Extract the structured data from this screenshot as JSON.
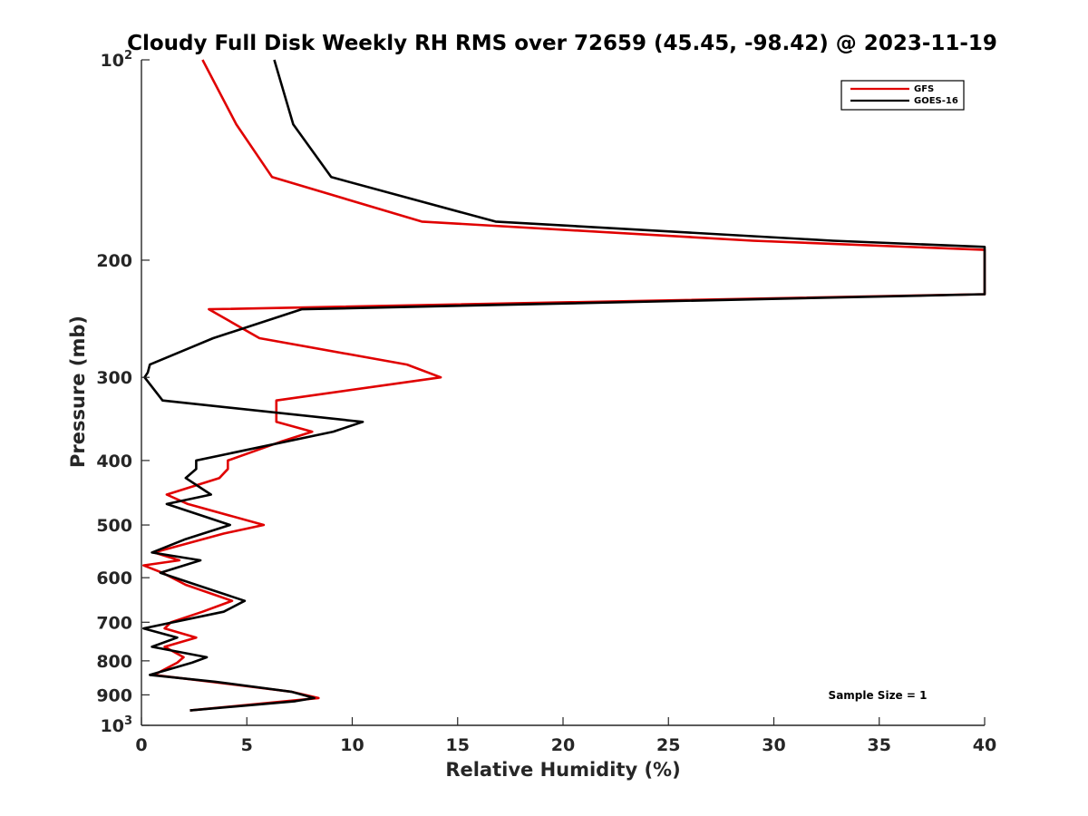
{
  "chart_data": {
    "type": "line",
    "title": "Cloudy Full Disk Weekly RH RMS over 72659 (45.45, -98.42) @ 2023-11-19",
    "xlabel": "Relative Humidity (%)",
    "ylabel": "Pressure (mb)",
    "xlim": [
      0,
      40
    ],
    "ylim": [
      100,
      1000
    ],
    "y_scale": "log",
    "y_reversed": true,
    "grid": false,
    "legend_position": "top-right",
    "x_ticks": [
      "0",
      "5",
      "10",
      "15",
      "20",
      "25",
      "30",
      "35",
      "40"
    ],
    "y_ticks": [
      {
        "value": 100,
        "base": "10",
        "exp": "2"
      },
      {
        "value": 200,
        "label": "200"
      },
      {
        "value": 300,
        "label": "300"
      },
      {
        "value": 400,
        "label": "400"
      },
      {
        "value": 500,
        "label": "500"
      },
      {
        "value": 600,
        "label": "600"
      },
      {
        "value": 700,
        "label": "700"
      },
      {
        "value": 800,
        "label": "800"
      },
      {
        "value": 900,
        "label": "900"
      },
      {
        "value": 1000,
        "base": "10",
        "exp": "3"
      }
    ],
    "annotation": "Sample Size = 1",
    "series": [
      {
        "name": "GFS",
        "color": "#e00000",
        "points": [
          [
            2.9,
            100
          ],
          [
            4.5,
            125
          ],
          [
            6.2,
            150
          ],
          [
            13.3,
            175
          ],
          [
            29.0,
            187
          ],
          [
            40.0,
            193
          ],
          [
            40.0,
            225
          ],
          [
            3.2,
            237
          ],
          [
            5.6,
            262
          ],
          [
            12.6,
            287
          ],
          [
            14.2,
            300
          ],
          [
            6.4,
            325
          ],
          [
            6.4,
            350
          ],
          [
            8.1,
            362
          ],
          [
            6.6,
            375
          ],
          [
            4.1,
            400
          ],
          [
            4.1,
            412
          ],
          [
            3.7,
            425
          ],
          [
            1.2,
            450
          ],
          [
            2.2,
            465
          ],
          [
            5.8,
            500
          ],
          [
            3.9,
            515
          ],
          [
            0.6,
            550
          ],
          [
            1.8,
            565
          ],
          [
            0.1,
            575
          ],
          [
            1.0,
            590
          ],
          [
            2.1,
            615
          ],
          [
            4.3,
            650
          ],
          [
            2.9,
            675
          ],
          [
            1.4,
            700
          ],
          [
            1.1,
            715
          ],
          [
            2.6,
            738
          ],
          [
            1.1,
            762
          ],
          [
            2.0,
            790
          ],
          [
            1.7,
            805
          ],
          [
            0.6,
            840
          ],
          [
            3.3,
            860
          ],
          [
            7.1,
            890
          ],
          [
            8.4,
            910
          ],
          [
            2.3,
            950
          ]
        ]
      },
      {
        "name": "GOES-16",
        "color": "#000000",
        "points": [
          [
            6.3,
            100
          ],
          [
            7.2,
            125
          ],
          [
            9.0,
            150
          ],
          [
            16.8,
            175
          ],
          [
            32.8,
            187
          ],
          [
            40.0,
            191
          ],
          [
            40.0,
            225
          ],
          [
            7.6,
            237
          ],
          [
            3.4,
            262
          ],
          [
            0.4,
            287
          ],
          [
            0.3,
            295
          ],
          [
            0.15,
            300
          ],
          [
            1.0,
            325
          ],
          [
            10.5,
            350
          ],
          [
            9.1,
            362
          ],
          [
            2.6,
            400
          ],
          [
            2.6,
            412
          ],
          [
            2.1,
            425
          ],
          [
            3.3,
            450
          ],
          [
            1.2,
            465
          ],
          [
            4.2,
            500
          ],
          [
            2.1,
            525
          ],
          [
            0.5,
            550
          ],
          [
            2.8,
            565
          ],
          [
            0.9,
            590
          ],
          [
            2.6,
            615
          ],
          [
            4.9,
            650
          ],
          [
            3.9,
            675
          ],
          [
            0.1,
            715
          ],
          [
            1.7,
            738
          ],
          [
            0.5,
            762
          ],
          [
            3.1,
            790
          ],
          [
            2.4,
            805
          ],
          [
            0.4,
            840
          ],
          [
            3.5,
            860
          ],
          [
            7.1,
            890
          ],
          [
            8.2,
            910
          ],
          [
            7.3,
            920
          ],
          [
            2.3,
            950
          ]
        ]
      }
    ]
  }
}
